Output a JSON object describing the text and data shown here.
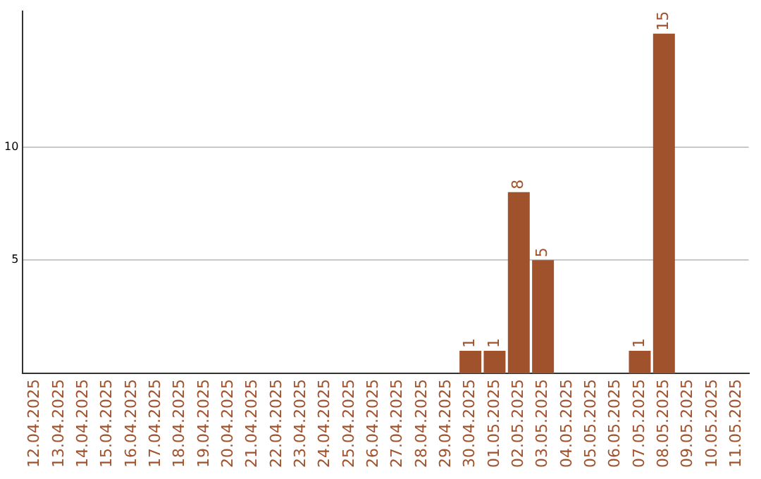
{
  "chart_data": {
    "type": "bar",
    "categories": [
      "12.04.2025",
      "13.04.2025",
      "14.04.2025",
      "15.04.2025",
      "16.04.2025",
      "17.04.2025",
      "18.04.2025",
      "19.04.2025",
      "20.04.2025",
      "21.04.2025",
      "22.04.2025",
      "23.04.2025",
      "24.04.2025",
      "25.04.2025",
      "26.04.2025",
      "27.04.2025",
      "28.04.2025",
      "29.04.2025",
      "30.04.2025",
      "01.05.2025",
      "02.05.2025",
      "03.05.2025",
      "04.05.2025",
      "05.05.2025",
      "06.05.2025",
      "07.05.2025",
      "08.05.2025",
      "09.05.2025",
      "10.05.2025",
      "11.05.2025"
    ],
    "values": [
      null,
      null,
      null,
      null,
      null,
      null,
      null,
      null,
      null,
      null,
      null,
      null,
      null,
      null,
      null,
      null,
      null,
      null,
      1,
      1,
      8,
      5,
      null,
      null,
      null,
      1,
      15,
      null,
      null,
      null
    ],
    "color": "#a0522d",
    "ylim": [
      0,
      16
    ],
    "yticks": [
      5,
      10
    ],
    "grid": "y",
    "data_labels": true,
    "legend": false
  }
}
